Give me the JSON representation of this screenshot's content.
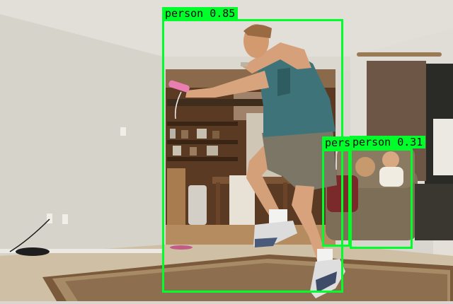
{
  "scene": {
    "description_icon": "living-room-photo",
    "colors": {
      "wall": "#d8d5cd",
      "ceiling": "#e3e0da",
      "floor_carpet": "#c9b79c",
      "rug": "#7a5a3a",
      "curtain": "#6b5646",
      "wood": "#6a4328",
      "shirt": "#3f7478",
      "shorts": "#7a7466",
      "skin": "#d9a07a",
      "box_green": "#00ff2a"
    }
  },
  "detections": [
    {
      "label": "person 0.85",
      "class": "person",
      "score": 0.85
    },
    {
      "label": "pers",
      "class": "person",
      "score": null
    },
    {
      "label": "person 0.31",
      "class": "person",
      "score": 0.31
    }
  ]
}
